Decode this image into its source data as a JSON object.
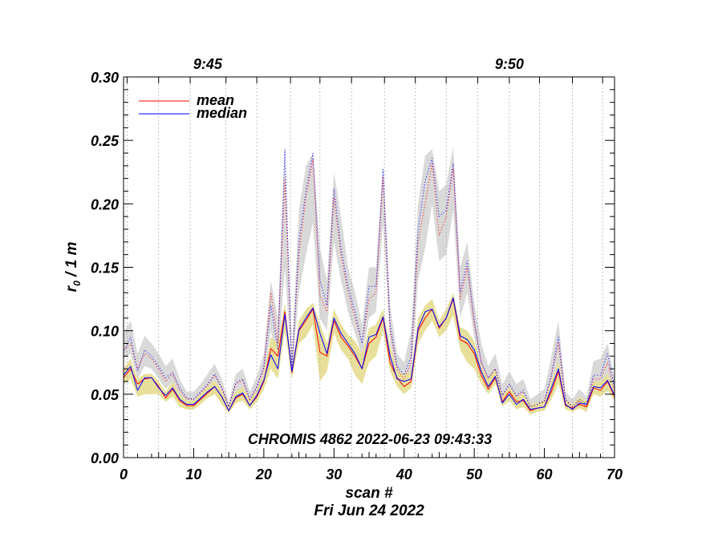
{
  "chart_data": {
    "type": "line",
    "title": "CHROMIS 4862 2022-06-23 09:43:33",
    "xlabel": "scan #",
    "xlabel_line2": "Fri Jun 24 2022",
    "ylabel": "r",
    "ylabel_sub": "0",
    "ylabel_suffix": " / 1 m",
    "xlim": [
      0,
      70
    ],
    "ylim": [
      0.0,
      0.3
    ],
    "x_ticks": [
      0,
      10,
      20,
      30,
      40,
      50,
      60,
      70
    ],
    "x_tick_labels": [
      "0",
      "10",
      "20",
      "30",
      "40",
      "50",
      "60",
      "70"
    ],
    "y_ticks": [
      0.0,
      0.05,
      0.1,
      0.15,
      0.2,
      0.25,
      0.3
    ],
    "y_tick_labels": [
      "0.00",
      "0.05",
      "0.10",
      "0.15",
      "0.20",
      "0.25",
      "0.30"
    ],
    "top_axis": {
      "labels": [
        {
          "x": 12,
          "text": "9:45"
        },
        {
          "x": 55,
          "text": "9:50"
        }
      ],
      "minute_gridlines_x": [
        0.5,
        5,
        9.5,
        14.6,
        19,
        23.8,
        28,
        32.5,
        37.2,
        41.6,
        46,
        50.5,
        55,
        59.3,
        64,
        68.3
      ]
    },
    "legend": {
      "position": "top-left",
      "entries": [
        {
          "label": "mean",
          "color": "#ff0000"
        },
        {
          "label": "median",
          "color": "#0000ff"
        }
      ]
    },
    "x": [
      0,
      1,
      2,
      3,
      4,
      5,
      6,
      7,
      8,
      9,
      10,
      11,
      12,
      13,
      14,
      15,
      16,
      17,
      18,
      19,
      20,
      21,
      22,
      23,
      24,
      25,
      26,
      27,
      28,
      29,
      30,
      31,
      32,
      33,
      34,
      35,
      36,
      37,
      38,
      39,
      40,
      41,
      42,
      43,
      44,
      45,
      46,
      47,
      48,
      49,
      50,
      51,
      52,
      53,
      54,
      55,
      56,
      57,
      58,
      59,
      60,
      61,
      62,
      63,
      64,
      65,
      66,
      67,
      68,
      69,
      70
    ],
    "series": [
      {
        "name": "mean",
        "style": "solid",
        "color": "#ff0000",
        "values": [
          0.063,
          0.07,
          0.058,
          0.062,
          0.063,
          0.056,
          0.047,
          0.054,
          0.045,
          0.041,
          0.041,
          0.046,
          0.051,
          0.056,
          0.048,
          0.037,
          0.047,
          0.05,
          0.041,
          0.048,
          0.06,
          0.086,
          0.08,
          0.115,
          0.067,
          0.1,
          0.108,
          0.117,
          0.083,
          0.08,
          0.108,
          0.095,
          0.088,
          0.08,
          0.07,
          0.09,
          0.095,
          0.11,
          0.075,
          0.063,
          0.056,
          0.06,
          0.1,
          0.11,
          0.117,
          0.102,
          0.11,
          0.125,
          0.093,
          0.09,
          0.082,
          0.065,
          0.054,
          0.063,
          0.044,
          0.052,
          0.044,
          0.045,
          0.037,
          0.039,
          0.04,
          0.052,
          0.068,
          0.041,
          0.039,
          0.042,
          0.04,
          0.055,
          0.053,
          0.06,
          0.048
        ]
      },
      {
        "name": "median",
        "style": "solid",
        "color": "#0000ff",
        "values": [
          0.065,
          0.072,
          0.053,
          0.063,
          0.063,
          0.055,
          0.049,
          0.055,
          0.046,
          0.042,
          0.042,
          0.047,
          0.052,
          0.056,
          0.048,
          0.037,
          0.048,
          0.051,
          0.041,
          0.049,
          0.061,
          0.081,
          0.07,
          0.113,
          0.068,
          0.101,
          0.11,
          0.118,
          0.098,
          0.082,
          0.11,
          0.098,
          0.09,
          0.082,
          0.07,
          0.095,
          0.097,
          0.111,
          0.08,
          0.062,
          0.06,
          0.062,
          0.102,
          0.115,
          0.117,
          0.103,
          0.11,
          0.126,
          0.096,
          0.093,
          0.085,
          0.068,
          0.056,
          0.064,
          0.043,
          0.05,
          0.042,
          0.046,
          0.038,
          0.039,
          0.04,
          0.055,
          0.07,
          0.042,
          0.038,
          0.043,
          0.042,
          0.056,
          0.055,
          0.061,
          0.049
        ]
      },
      {
        "name": "mean (dotted)",
        "style": "dotted",
        "color": "#ff0000",
        "values": [
          0.085,
          0.09,
          0.07,
          0.082,
          0.078,
          0.07,
          0.06,
          0.066,
          0.053,
          0.046,
          0.046,
          0.051,
          0.057,
          0.065,
          0.055,
          0.04,
          0.058,
          0.061,
          0.045,
          0.055,
          0.07,
          0.13,
          0.09,
          0.22,
          0.072,
          0.16,
          0.205,
          0.235,
          0.128,
          0.115,
          0.205,
          0.16,
          0.13,
          0.11,
          0.09,
          0.125,
          0.13,
          0.222,
          0.1,
          0.07,
          0.062,
          0.075,
          0.17,
          0.2,
          0.232,
          0.175,
          0.19,
          0.228,
          0.125,
          0.15,
          0.105,
          0.075,
          0.062,
          0.07,
          0.048,
          0.058,
          0.048,
          0.052,
          0.04,
          0.042,
          0.044,
          0.065,
          0.09,
          0.045,
          0.04,
          0.045,
          0.04,
          0.062,
          0.062,
          0.075,
          0.052
        ]
      },
      {
        "name": "median (dotted)",
        "style": "dotted",
        "color": "#0000ff",
        "values": [
          0.083,
          0.095,
          0.068,
          0.085,
          0.08,
          0.072,
          0.063,
          0.067,
          0.055,
          0.047,
          0.046,
          0.052,
          0.058,
          0.066,
          0.055,
          0.04,
          0.059,
          0.062,
          0.046,
          0.056,
          0.072,
          0.12,
          0.085,
          0.243,
          0.07,
          0.17,
          0.21,
          0.24,
          0.14,
          0.12,
          0.212,
          0.165,
          0.135,
          0.115,
          0.09,
          0.135,
          0.135,
          0.227,
          0.105,
          0.072,
          0.065,
          0.08,
          0.18,
          0.218,
          0.236,
          0.19,
          0.195,
          0.232,
          0.13,
          0.155,
          0.108,
          0.075,
          0.063,
          0.07,
          0.049,
          0.058,
          0.049,
          0.053,
          0.04,
          0.042,
          0.045,
          0.065,
          0.095,
          0.046,
          0.04,
          0.046,
          0.042,
          0.065,
          0.065,
          0.082,
          0.055
        ]
      }
    ],
    "bands": [
      {
        "name": "dotted range",
        "color": "#d9d9d9",
        "lower": [
          0.078,
          0.082,
          0.062,
          0.072,
          0.07,
          0.062,
          0.054,
          0.06,
          0.048,
          0.043,
          0.043,
          0.048,
          0.053,
          0.06,
          0.05,
          0.038,
          0.052,
          0.055,
          0.042,
          0.05,
          0.062,
          0.1,
          0.075,
          0.15,
          0.066,
          0.13,
          0.16,
          0.185,
          0.11,
          0.1,
          0.17,
          0.14,
          0.115,
          0.098,
          0.08,
          0.11,
          0.115,
          0.185,
          0.09,
          0.065,
          0.058,
          0.066,
          0.14,
          0.165,
          0.2,
          0.155,
          0.16,
          0.195,
          0.11,
          0.13,
          0.095,
          0.068,
          0.058,
          0.064,
          0.045,
          0.054,
          0.045,
          0.048,
          0.038,
          0.04,
          0.041,
          0.058,
          0.075,
          0.042,
          0.038,
          0.042,
          0.038,
          0.056,
          0.056,
          0.064,
          0.049
        ],
        "upper": [
          0.098,
          0.108,
          0.082,
          0.096,
          0.09,
          0.082,
          0.072,
          0.078,
          0.062,
          0.052,
          0.052,
          0.058,
          0.066,
          0.074,
          0.062,
          0.044,
          0.066,
          0.07,
          0.052,
          0.064,
          0.082,
          0.14,
          0.11,
          0.245,
          0.085,
          0.195,
          0.23,
          0.24,
          0.165,
          0.14,
          0.225,
          0.19,
          0.15,
          0.13,
          0.105,
          0.15,
          0.15,
          0.23,
          0.12,
          0.082,
          0.075,
          0.1,
          0.2,
          0.238,
          0.243,
          0.21,
          0.215,
          0.245,
          0.15,
          0.17,
          0.122,
          0.09,
          0.072,
          0.082,
          0.058,
          0.068,
          0.058,
          0.062,
          0.046,
          0.05,
          0.054,
          0.08,
          0.108,
          0.052,
          0.046,
          0.054,
          0.048,
          0.076,
          0.078,
          0.09,
          0.062
        ]
      },
      {
        "name": "solid range",
        "color": "#e8e09a",
        "lower": [
          0.058,
          0.062,
          0.048,
          0.05,
          0.05,
          0.05,
          0.044,
          0.048,
          0.04,
          0.038,
          0.038,
          0.042,
          0.047,
          0.05,
          0.042,
          0.035,
          0.043,
          0.045,
          0.038,
          0.044,
          0.054,
          0.07,
          0.062,
          0.1,
          0.062,
          0.09,
          0.095,
          0.105,
          0.06,
          0.068,
          0.098,
          0.085,
          0.078,
          0.065,
          0.058,
          0.075,
          0.08,
          0.1,
          0.068,
          0.056,
          0.05,
          0.055,
          0.09,
          0.1,
          0.108,
          0.095,
          0.1,
          0.112,
          0.085,
          0.075,
          0.07,
          0.058,
          0.05,
          0.058,
          0.04,
          0.045,
          0.038,
          0.04,
          0.034,
          0.036,
          0.037,
          0.046,
          0.058,
          0.038,
          0.036,
          0.039,
          0.036,
          0.05,
          0.048,
          0.053,
          0.045
        ],
        "upper": [
          0.07,
          0.078,
          0.062,
          0.066,
          0.066,
          0.06,
          0.052,
          0.06,
          0.05,
          0.045,
          0.045,
          0.05,
          0.056,
          0.061,
          0.053,
          0.04,
          0.052,
          0.056,
          0.045,
          0.053,
          0.066,
          0.095,
          0.09,
          0.122,
          0.072,
          0.108,
          0.117,
          0.122,
          0.105,
          0.09,
          0.117,
          0.105,
          0.097,
          0.092,
          0.082,
          0.102,
          0.105,
          0.117,
          0.088,
          0.068,
          0.066,
          0.068,
          0.11,
          0.12,
          0.125,
          0.108,
          0.117,
          0.13,
          0.103,
          0.1,
          0.092,
          0.072,
          0.062,
          0.07,
          0.048,
          0.056,
          0.048,
          0.05,
          0.042,
          0.043,
          0.045,
          0.06,
          0.076,
          0.046,
          0.042,
          0.048,
          0.045,
          0.06,
          0.06,
          0.066,
          0.053
        ]
      }
    ]
  }
}
